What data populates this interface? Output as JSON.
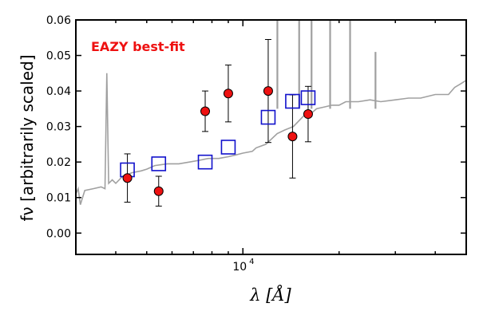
{
  "chart_data": {
    "type": "scatter",
    "title": "",
    "annotation": "EAZY best-fit",
    "xlabel": "λ [Å]",
    "ylabel": "fν [arbitrarily scaled]",
    "xscale": "log",
    "xlim": [
      3000,
      50000
    ],
    "ylim": [
      -0.006,
      0.06
    ],
    "yticks": [
      0.0,
      0.01,
      0.02,
      0.03,
      0.04,
      0.05,
      0.06
    ],
    "ytick_labels": [
      "0.00",
      "0.01",
      "0.02",
      "0.03",
      "0.04",
      "0.05",
      "0.06"
    ],
    "xtick_labels": [
      {
        "value": 10000,
        "base": "10",
        "exp": "4"
      }
    ],
    "grid": false,
    "colors": {
      "model": "#a0a0a0",
      "observed_face": "#ee1111",
      "model_photometry": "#1111cc",
      "annotation": "#ee1111"
    },
    "series": [
      {
        "kind": "model-spectrum",
        "x": [
          3000,
          3050,
          3100,
          3200,
          3400,
          3600,
          3700,
          3750,
          3800,
          3850,
          3900,
          3950,
          4000,
          4100,
          4200,
          4500,
          4800,
          5000,
          5300,
          5800,
          6300,
          6800,
          7300,
          7800,
          8400,
          9000,
          9500,
          10000,
          10700,
          11000,
          11800,
          12300,
          12800,
          13500,
          14400,
          15500,
          16500,
          17000,
          18000,
          19000,
          20000,
          21000,
          22000,
          23000,
          25000,
          27000,
          30000,
          33000,
          36000,
          40000,
          44000,
          46000,
          48000,
          50000
        ],
        "y": [
          0.011,
          0.0125,
          0.008,
          0.012,
          0.0125,
          0.013,
          0.0125,
          0.045,
          0.014,
          0.0145,
          0.015,
          0.0145,
          0.014,
          0.015,
          0.016,
          0.017,
          0.0175,
          0.018,
          0.019,
          0.0195,
          0.0195,
          0.02,
          0.0205,
          0.021,
          0.021,
          0.0215,
          0.022,
          0.0225,
          0.023,
          0.024,
          0.025,
          0.0265,
          0.028,
          0.029,
          0.03,
          0.033,
          0.034,
          0.035,
          0.0355,
          0.036,
          0.036,
          0.037,
          0.037,
          0.037,
          0.0375,
          0.037,
          0.0375,
          0.038,
          0.038,
          0.039,
          0.039,
          0.041,
          0.042,
          0.043
        ]
      },
      {
        "kind": "observed",
        "x": [
          4350,
          5450,
          7620,
          9000,
          12000,
          14300,
          16000,
          16350
        ],
        "y": [
          0.0155,
          0.0118,
          0.0343,
          0.0393,
          0.04,
          0.0272,
          0.0335,
          0.0335
        ],
        "yerr": [
          0.0068,
          0.0042,
          0.0057,
          0.008,
          0.0145,
          0.0117,
          0.0078,
          0.0078
        ]
      },
      {
        "kind": "model-photometry",
        "x": [
          4350,
          5450,
          7620,
          9000,
          12000,
          14300,
          16000,
          16350
        ],
        "y": [
          0.0178,
          0.0195,
          0.02,
          0.0242,
          0.0326,
          0.0371,
          0.0381,
          0.0381
        ]
      }
    ]
  }
}
